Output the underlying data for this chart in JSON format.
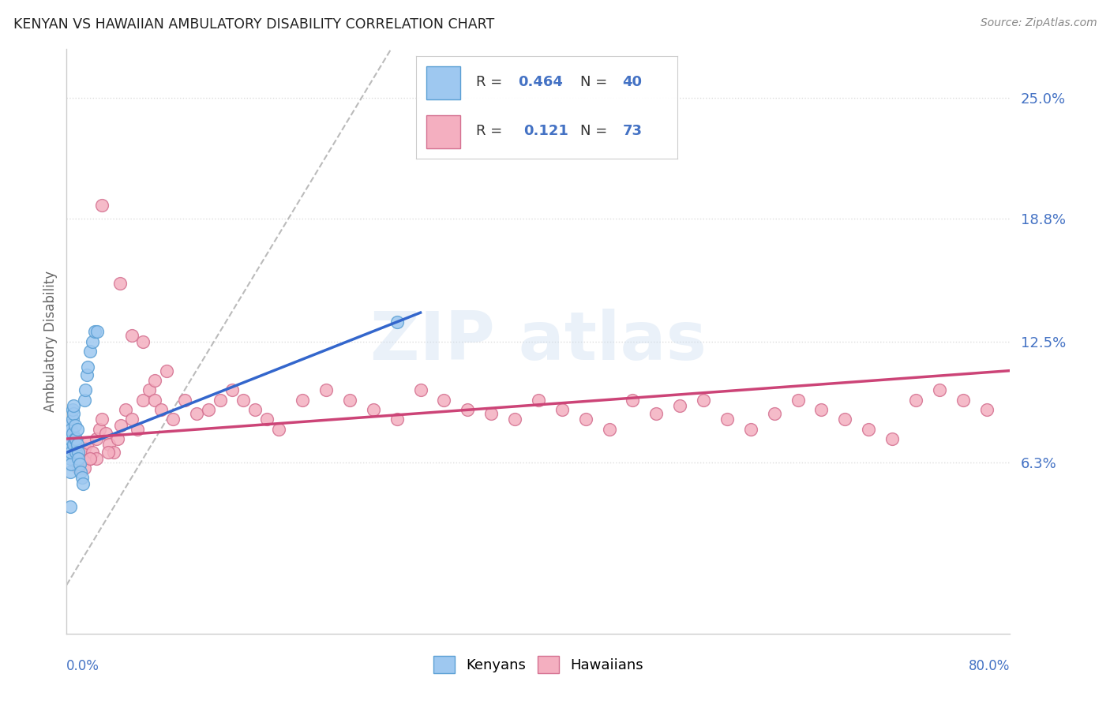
{
  "title": "KENYAN VS HAWAIIAN AMBULATORY DISABILITY CORRELATION CHART",
  "source": "Source: ZipAtlas.com",
  "ylabel": "Ambulatory Disability",
  "yticks": [
    0.063,
    0.125,
    0.188,
    0.25
  ],
  "ytick_labels": [
    "6.3%",
    "12.5%",
    "18.8%",
    "25.0%"
  ],
  "xmin": 0.0,
  "xmax": 0.8,
  "ymin": -0.025,
  "ymax": 0.275,
  "kenyan_face": "#9ec8f0",
  "kenyan_edge": "#5a9fd4",
  "hawaiian_face": "#f4afc0",
  "hawaiian_edge": "#d47090",
  "trend_blue": "#3366cc",
  "trend_pink": "#cc4477",
  "ref_color": "#bbbbbb",
  "R1": "0.464",
  "N1": "40",
  "R2": "0.121",
  "N2": "73",
  "accent_color": "#4472c4",
  "tick_color": "#4472c4",
  "kenyan_x": [
    0.001,
    0.001,
    0.002,
    0.002,
    0.002,
    0.003,
    0.003,
    0.003,
    0.003,
    0.004,
    0.004,
    0.004,
    0.005,
    0.005,
    0.005,
    0.006,
    0.006,
    0.006,
    0.007,
    0.007,
    0.008,
    0.008,
    0.009,
    0.009,
    0.01,
    0.01,
    0.011,
    0.012,
    0.013,
    0.014,
    0.015,
    0.016,
    0.017,
    0.018,
    0.02,
    0.022,
    0.024,
    0.026,
    0.003,
    0.28
  ],
  "kenyan_y": [
    0.078,
    0.072,
    0.075,
    0.082,
    0.068,
    0.065,
    0.058,
    0.07,
    0.075,
    0.08,
    0.062,
    0.068,
    0.085,
    0.09,
    0.078,
    0.088,
    0.092,
    0.072,
    0.082,
    0.075,
    0.068,
    0.075,
    0.08,
    0.072,
    0.068,
    0.065,
    0.062,
    0.058,
    0.055,
    0.052,
    0.095,
    0.1,
    0.108,
    0.112,
    0.12,
    0.125,
    0.13,
    0.13,
    0.04,
    0.135
  ],
  "hawaiian_x": [
    0.005,
    0.008,
    0.012,
    0.015,
    0.018,
    0.02,
    0.022,
    0.025,
    0.028,
    0.03,
    0.033,
    0.036,
    0.04,
    0.043,
    0.046,
    0.05,
    0.055,
    0.06,
    0.065,
    0.07,
    0.075,
    0.08,
    0.09,
    0.1,
    0.11,
    0.12,
    0.13,
    0.14,
    0.15,
    0.16,
    0.17,
    0.18,
    0.2,
    0.22,
    0.24,
    0.26,
    0.28,
    0.3,
    0.32,
    0.34,
    0.36,
    0.38,
    0.4,
    0.42,
    0.44,
    0.46,
    0.48,
    0.5,
    0.52,
    0.54,
    0.56,
    0.58,
    0.6,
    0.62,
    0.64,
    0.66,
    0.68,
    0.7,
    0.72,
    0.74,
    0.76,
    0.78,
    0.015,
    0.025,
    0.035,
    0.045,
    0.055,
    0.065,
    0.075,
    0.085,
    0.01,
    0.02,
    0.03
  ],
  "hawaiian_y": [
    0.075,
    0.072,
    0.068,
    0.07,
    0.073,
    0.065,
    0.068,
    0.075,
    0.08,
    0.085,
    0.078,
    0.072,
    0.068,
    0.075,
    0.082,
    0.09,
    0.085,
    0.08,
    0.095,
    0.1,
    0.095,
    0.09,
    0.085,
    0.095,
    0.088,
    0.09,
    0.095,
    0.1,
    0.095,
    0.09,
    0.085,
    0.08,
    0.095,
    0.1,
    0.095,
    0.09,
    0.085,
    0.1,
    0.095,
    0.09,
    0.088,
    0.085,
    0.095,
    0.09,
    0.085,
    0.08,
    0.095,
    0.088,
    0.092,
    0.095,
    0.085,
    0.08,
    0.088,
    0.095,
    0.09,
    0.085,
    0.08,
    0.075,
    0.095,
    0.1,
    0.095,
    0.09,
    0.06,
    0.065,
    0.068,
    0.155,
    0.128,
    0.125,
    0.105,
    0.11,
    0.06,
    0.065,
    0.195
  ]
}
